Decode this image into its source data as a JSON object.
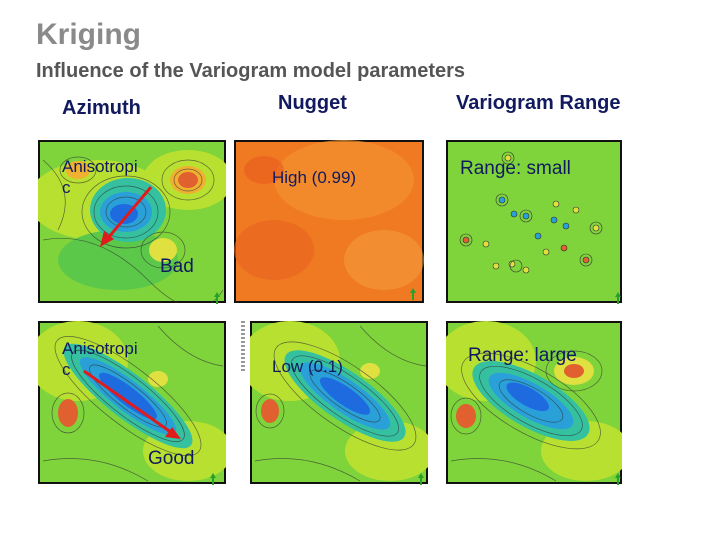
{
  "title": "Kriging",
  "subtitle": "Influence of the Variogram model parameters",
  "columns": {
    "azimuth": "Azimuth",
    "nugget": "Nugget",
    "range": "Variogram Range"
  },
  "panels": {
    "azimuth_bad": {
      "label_line1": "Anisotropi",
      "label_line2": "c",
      "verdict": "Bad"
    },
    "azimuth_good": {
      "label_line1": "Anisotropi",
      "label_line2": "c",
      "verdict": "Good"
    },
    "nugget_high": {
      "label": "High (0.99)"
    },
    "nugget_low": {
      "label": "Low (0.1)"
    },
    "range_small": {
      "label": "Range: small"
    },
    "range_large": {
      "label": "Range: large"
    }
  },
  "colors": {
    "arrow": "#e01b1b",
    "north_arrow": "#2aa02a",
    "text": "#111a5e"
  }
}
